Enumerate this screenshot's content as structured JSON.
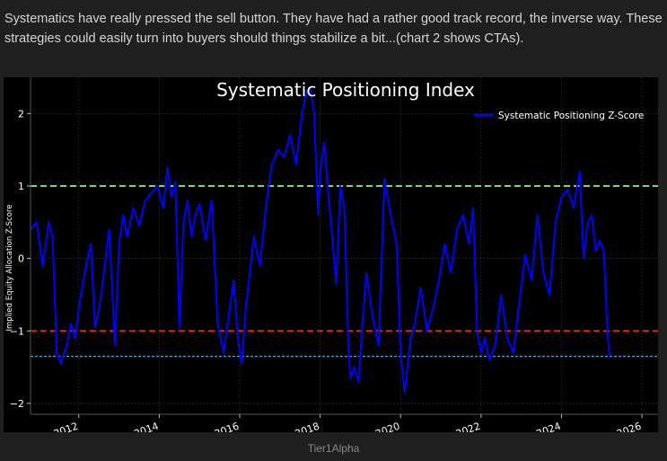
{
  "post": {
    "text": "Systematics have really pressed the sell button. They have had a rather good track record, the inverse way. These strategies could easily turn into buyers should things stabilize a bit...(chart 2 shows CTAs)."
  },
  "source_label": "Tier1Alpha",
  "colors": {
    "background": "#000000",
    "series": "#0000ff",
    "upper_threshold": "#7fd67f",
    "lower_threshold": "#e02020",
    "current_level": "#4aa8e0",
    "text": "#ffffff"
  },
  "chart_data": {
    "type": "line",
    "title": "Systematic Positioning Index",
    "xlabel": "",
    "ylabel": "Implied Equity Allocation Z-Score",
    "xlim": [
      2010.8,
      2026.4
    ],
    "ylim": [
      -2.15,
      2.5
    ],
    "x_ticks": [
      2012,
      2014,
      2016,
      2018,
      2020,
      2022,
      2024,
      2026
    ],
    "x_tick_labels": [
      "2012",
      "2014",
      "2016",
      "2018",
      "2020",
      "2022",
      "2024",
      "2026"
    ],
    "y_ticks": [
      -2,
      -1,
      0,
      1,
      2
    ],
    "y_tick_labels": [
      "−2",
      "−1",
      "0",
      "1",
      "2"
    ],
    "grid": true,
    "legend_position": "top-right",
    "reference_lines": [
      {
        "y": 1,
        "style": "dashed",
        "color": "#7fd67f"
      },
      {
        "y": -1,
        "style": "dashed",
        "color": "#e02020"
      },
      {
        "y": -1.35,
        "style": "dotted",
        "color": "#4aa8e0"
      }
    ],
    "series": [
      {
        "name": "Systematic Positioning Z-Score",
        "color": "#0000ff",
        "x": [
          2010.8,
          2010.95,
          2011.1,
          2011.25,
          2011.35,
          2011.45,
          2011.55,
          2011.7,
          2011.8,
          2011.9,
          2012.05,
          2012.2,
          2012.3,
          2012.4,
          2012.5,
          2012.6,
          2012.75,
          2012.9,
          2013.0,
          2013.1,
          2013.2,
          2013.35,
          2013.5,
          2013.65,
          2013.8,
          2013.95,
          2014.1,
          2014.2,
          2014.3,
          2014.4,
          2014.5,
          2014.6,
          2014.7,
          2014.8,
          2014.9,
          2015.0,
          2015.15,
          2015.3,
          2015.45,
          2015.6,
          2015.75,
          2015.85,
          2015.95,
          2016.05,
          2016.15,
          2016.25,
          2016.35,
          2016.5,
          2016.65,
          2016.8,
          2016.95,
          2017.1,
          2017.25,
          2017.4,
          2017.55,
          2017.65,
          2017.75,
          2017.85,
          2017.95,
          2018.0,
          2018.1,
          2018.2,
          2018.3,
          2018.4,
          2018.5,
          2018.6,
          2018.7,
          2018.75,
          2018.85,
          2018.95,
          2019.05,
          2019.15,
          2019.3,
          2019.45,
          2019.6,
          2019.75,
          2019.9,
          2020.0,
          2020.1,
          2020.15,
          2020.25,
          2020.35,
          2020.5,
          2020.65,
          2020.8,
          2020.95,
          2021.1,
          2021.25,
          2021.4,
          2021.55,
          2021.7,
          2021.8,
          2021.9,
          2022.0,
          2022.1,
          2022.2,
          2022.35,
          2022.5,
          2022.65,
          2022.8,
          2022.95,
          2023.1,
          2023.25,
          2023.4,
          2023.55,
          2023.7,
          2023.85,
          2024.0,
          2024.15,
          2024.3,
          2024.45,
          2024.55,
          2024.65,
          2024.75,
          2024.85,
          2024.95,
          2025.05,
          2025.15,
          2025.2
        ],
        "values": [
          0.4,
          0.5,
          -0.1,
          0.5,
          0.3,
          -1.3,
          -1.45,
          -1.2,
          -0.9,
          -1.1,
          -0.5,
          -0.05,
          0.2,
          -0.95,
          -0.7,
          -0.3,
          0.4,
          -1.2,
          0.2,
          0.6,
          0.3,
          0.7,
          0.45,
          0.8,
          0.9,
          1.0,
          0.7,
          1.25,
          0.85,
          1.05,
          -0.95,
          0.5,
          0.8,
          0.3,
          0.6,
          0.75,
          0.25,
          0.8,
          -0.9,
          -1.3,
          -0.7,
          -0.3,
          -1.1,
          -1.45,
          -0.7,
          -0.2,
          0.3,
          -0.1,
          0.7,
          1.3,
          1.5,
          1.4,
          1.7,
          1.3,
          2.0,
          2.3,
          2.35,
          2.0,
          0.6,
          1.2,
          1.6,
          0.9,
          0.3,
          -0.35,
          1.0,
          0.7,
          -1.2,
          -1.65,
          -1.5,
          -1.7,
          -0.9,
          -0.2,
          -0.8,
          -1.2,
          1.1,
          0.6,
          0.2,
          -1.3,
          -1.85,
          -1.6,
          -1.1,
          -0.9,
          -0.4,
          -1.0,
          -0.7,
          -0.3,
          0.2,
          -0.2,
          0.4,
          0.6,
          0.2,
          0.7,
          -1.0,
          -1.3,
          -1.1,
          -1.4,
          -1.2,
          -0.5,
          -1.1,
          -1.3,
          -0.6,
          0.05,
          -0.3,
          0.6,
          -0.2,
          -0.5,
          0.5,
          0.85,
          0.95,
          0.7,
          1.2,
          0.0,
          0.5,
          0.6,
          0.1,
          0.25,
          0.1,
          -1.1,
          -1.35
        ]
      }
    ]
  }
}
